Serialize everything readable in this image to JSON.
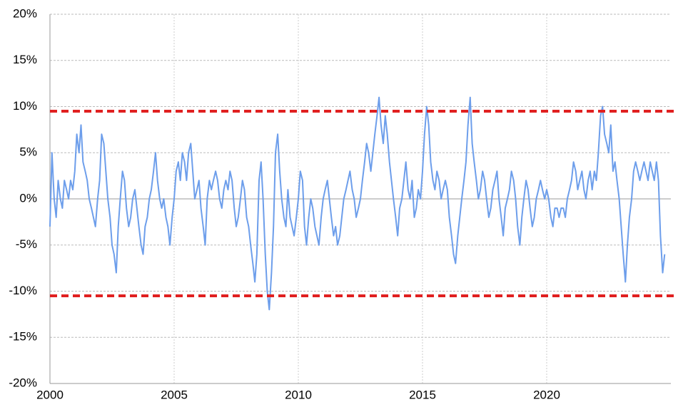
{
  "chart_data": {
    "type": "line",
    "x": [
      2000,
      2000.08,
      2000.17,
      2000.25,
      2000.33,
      2000.42,
      2000.5,
      2000.58,
      2000.67,
      2000.75,
      2000.83,
      2000.92,
      2001,
      2001.08,
      2001.17,
      2001.25,
      2001.33,
      2001.42,
      2001.5,
      2001.58,
      2001.67,
      2001.75,
      2001.83,
      2001.92,
      2002,
      2002.08,
      2002.17,
      2002.25,
      2002.33,
      2002.42,
      2002.5,
      2002.58,
      2002.67,
      2002.75,
      2002.83,
      2002.92,
      2003,
      2003.08,
      2003.17,
      2003.25,
      2003.33,
      2003.42,
      2003.5,
      2003.58,
      2003.67,
      2003.75,
      2003.83,
      2003.92,
      2004,
      2004.08,
      2004.17,
      2004.25,
      2004.33,
      2004.42,
      2004.5,
      2004.58,
      2004.67,
      2004.75,
      2004.83,
      2004.92,
      2005,
      2005.08,
      2005.17,
      2005.25,
      2005.33,
      2005.42,
      2005.5,
      2005.58,
      2005.67,
      2005.75,
      2005.83,
      2005.92,
      2006,
      2006.08,
      2006.17,
      2006.25,
      2006.33,
      2006.42,
      2006.5,
      2006.58,
      2006.67,
      2006.75,
      2006.83,
      2006.92,
      2007,
      2007.08,
      2007.17,
      2007.25,
      2007.33,
      2007.42,
      2007.5,
      2007.58,
      2007.67,
      2007.75,
      2007.83,
      2007.92,
      2008,
      2008.08,
      2008.17,
      2008.25,
      2008.33,
      2008.42,
      2008.5,
      2008.58,
      2008.67,
      2008.75,
      2008.83,
      2008.92,
      2009,
      2009.08,
      2009.17,
      2009.25,
      2009.33,
      2009.42,
      2009.5,
      2009.58,
      2009.67,
      2009.75,
      2009.83,
      2009.92,
      2010,
      2010.08,
      2010.17,
      2010.25,
      2010.33,
      2010.42,
      2010.5,
      2010.58,
      2010.67,
      2010.75,
      2010.83,
      2010.92,
      2011,
      2011.08,
      2011.17,
      2011.25,
      2011.33,
      2011.42,
      2011.5,
      2011.58,
      2011.67,
      2011.75,
      2011.83,
      2011.92,
      2012,
      2012.08,
      2012.17,
      2012.25,
      2012.33,
      2012.42,
      2012.5,
      2012.58,
      2012.67,
      2012.75,
      2012.83,
      2012.92,
      2013,
      2013.08,
      2013.17,
      2013.25,
      2013.33,
      2013.42,
      2013.5,
      2013.58,
      2013.67,
      2013.75,
      2013.83,
      2013.92,
      2014,
      2014.08,
      2014.17,
      2014.25,
      2014.33,
      2014.42,
      2014.5,
      2014.58,
      2014.67,
      2014.75,
      2014.83,
      2014.92,
      2015,
      2015.08,
      2015.17,
      2015.25,
      2015.33,
      2015.42,
      2015.5,
      2015.58,
      2015.67,
      2015.75,
      2015.83,
      2015.92,
      2016,
      2016.08,
      2016.17,
      2016.25,
      2016.33,
      2016.42,
      2016.5,
      2016.58,
      2016.67,
      2016.75,
      2016.83,
      2016.92,
      2017,
      2017.08,
      2017.17,
      2017.25,
      2017.33,
      2017.42,
      2017.5,
      2017.58,
      2017.67,
      2017.75,
      2017.83,
      2017.92,
      2018,
      2018.08,
      2018.17,
      2018.25,
      2018.33,
      2018.42,
      2018.5,
      2018.58,
      2018.67,
      2018.75,
      2018.83,
      2018.92,
      2019,
      2019.08,
      2019.17,
      2019.25,
      2019.33,
      2019.42,
      2019.5,
      2019.58,
      2019.67,
      2019.75,
      2019.83,
      2019.92,
      2020,
      2020.08,
      2020.17,
      2020.25,
      2020.33,
      2020.42,
      2020.5,
      2020.58,
      2020.67,
      2020.75,
      2020.83,
      2020.92,
      2021,
      2021.08,
      2021.17,
      2021.25,
      2021.33,
      2021.42,
      2021.5,
      2021.58,
      2021.67,
      2021.75,
      2021.83,
      2021.92,
      2022,
      2022.08,
      2022.17,
      2022.25,
      2022.33,
      2022.42,
      2022.5,
      2022.58,
      2022.67,
      2022.75,
      2022.83,
      2022.92,
      2023,
      2023.08,
      2023.17,
      2023.25,
      2023.33,
      2023.42,
      2023.5,
      2023.58,
      2023.67,
      2023.75,
      2023.83,
      2023.92,
      2024,
      2024.08,
      2024.17,
      2024.25,
      2024.33,
      2024.42,
      2024.5,
      2024.58,
      2024.67,
      2024.75
    ],
    "series": [
      {
        "color": "#6d9eeb",
        "values": [
          -3,
          5,
          0,
          -2,
          2,
          0,
          -1,
          2,
          1,
          0,
          2,
          1,
          3,
          7,
          5,
          8,
          4,
          3,
          2,
          0,
          -1,
          -2,
          -3,
          0,
          2,
          7,
          6,
          3,
          0,
          -2,
          -5,
          -6,
          -8,
          -3,
          0,
          3,
          2,
          -1,
          -3,
          -2,
          0,
          1,
          -1,
          -3,
          -5,
          -6,
          -3,
          -2,
          0,
          1,
          3,
          5,
          2,
          0,
          -1,
          0,
          -2,
          -3,
          -5,
          -2,
          0,
          3,
          4,
          2,
          5,
          4,
          2,
          5,
          6,
          3,
          0,
          1,
          2,
          -1,
          -3,
          -5,
          0,
          2,
          1,
          2,
          3,
          2,
          0,
          -1,
          1,
          2,
          1,
          3,
          2,
          -1,
          -3,
          -2,
          0,
          2,
          1,
          -2,
          -3,
          -5,
          -7,
          -9,
          -6,
          2,
          4,
          0,
          -6,
          -10,
          -12,
          -8,
          -3,
          5,
          7,
          3,
          0,
          -2,
          -3,
          1,
          -2,
          -3,
          -4,
          -2,
          0,
          3,
          2,
          -3,
          -5,
          -2,
          0,
          -1,
          -3,
          -4,
          -5,
          -2,
          0,
          1,
          2,
          0,
          -2,
          -4,
          -3,
          -5,
          -4,
          -2,
          0,
          1,
          2,
          3,
          1,
          0,
          -2,
          -1,
          0,
          2,
          4,
          6,
          5,
          3,
          5,
          7,
          9,
          11,
          8,
          6,
          9,
          7,
          4,
          2,
          0,
          -2,
          -4,
          -1,
          0,
          2,
          4,
          1,
          0,
          2,
          -2,
          -1,
          1,
          0,
          3,
          7,
          10,
          8,
          4,
          2,
          1,
          3,
          2,
          0,
          1,
          2,
          1,
          -2,
          -4,
          -6,
          -7,
          -4,
          -2,
          0,
          2,
          4,
          8,
          11,
          6,
          4,
          2,
          0,
          1,
          3,
          2,
          0,
          -2,
          -1,
          1,
          2,
          3,
          0,
          -2,
          -4,
          -1,
          0,
          1,
          3,
          2,
          0,
          -3,
          -5,
          -2,
          0,
          2,
          1,
          -1,
          -3,
          -2,
          0,
          1,
          2,
          1,
          0,
          1,
          0,
          -2,
          -3,
          -1,
          -1,
          -2,
          -1,
          -1,
          -2,
          0,
          1,
          2,
          4,
          3,
          1,
          2,
          3,
          1,
          0,
          2,
          3,
          1,
          3,
          2,
          5,
          9,
          10,
          7,
          6,
          5,
          8,
          3,
          4,
          2,
          0,
          -3,
          -6,
          -9,
          -5,
          -2,
          0,
          3,
          4,
          3,
          2,
          3,
          4,
          3,
          2,
          4,
          3,
          2,
          4,
          2,
          -4,
          -8,
          -6
        ]
      }
    ],
    "xlim": [
      2000,
      2025
    ],
    "xticks": [
      2000,
      2005,
      2010,
      2015,
      2020
    ],
    "ylim": [
      -20,
      20
    ],
    "yticks": [
      {
        "value": -20,
        "label": "-20%"
      },
      {
        "value": -15,
        "label": "-15%"
      },
      {
        "value": -10,
        "label": "-10%"
      },
      {
        "value": -5,
        "label": "-5%"
      },
      {
        "value": 0,
        "label": "0%"
      },
      {
        "value": 5,
        "label": "5%"
      },
      {
        "value": 10,
        "label": "10%"
      },
      {
        "value": 15,
        "label": "15%"
      },
      {
        "value": 20,
        "label": "20%"
      }
    ],
    "negative_tick_color": "#c00000",
    "reference_lines": [
      {
        "value": 9.5,
        "color": "#e02020"
      },
      {
        "value": -10.5,
        "color": "#e02020"
      }
    ],
    "grid": true
  }
}
